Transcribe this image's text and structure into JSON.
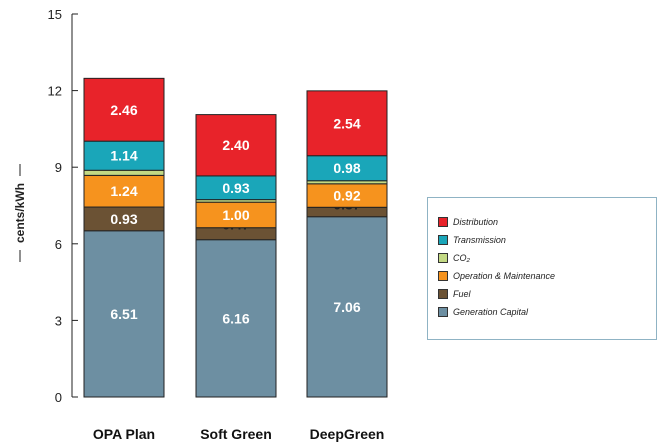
{
  "chart_data": {
    "type": "bar",
    "stacked": true,
    "categories": [
      "OPA Plan",
      "Soft Green",
      "DeepGreen"
    ],
    "ylabel": "cents/kWh",
    "ylim": [
      0,
      15
    ],
    "yticks": [
      0,
      3,
      6,
      9,
      12,
      15
    ],
    "legend_position": "right",
    "series": [
      {
        "name": "Generation Capital",
        "color": "#6d8fa2",
        "label_color": "#ffffff",
        "values": [
          6.51,
          6.16,
          7.06
        ],
        "labels": [
          "6.51",
          "6.16",
          "7.06"
        ]
      },
      {
        "name": "Fuel",
        "color": "#6b5234",
        "label_color": "#ffffff",
        "values": [
          0.93,
          0.47,
          0.37
        ],
        "labels": [
          "0.93",
          "0.47",
          "0.37"
        ]
      },
      {
        "name": "Operation & Maintenance",
        "color": "#f6931e",
        "label_color": "#ffffff",
        "values": [
          1.24,
          1.0,
          0.92
        ],
        "labels": [
          "1.24",
          "1.00",
          "0.92"
        ]
      },
      {
        "name": "CO₂",
        "color": "#c3d984",
        "label_color": "#333333",
        "values": [
          0.2,
          0.1,
          0.12
        ],
        "labels": [
          "",
          "",
          ""
        ]
      },
      {
        "name": "Transmission",
        "color": "#1aa6b9",
        "label_color": "#ffffff",
        "values": [
          1.14,
          0.93,
          0.98
        ],
        "labels": [
          "1.14",
          "0.93",
          "0.98"
        ]
      },
      {
        "name": "Distribution",
        "color": "#e8232a",
        "label_color": "#ffffff",
        "values": [
          2.46,
          2.4,
          2.54
        ],
        "labels": [
          "2.46",
          "2.40",
          "2.54"
        ]
      }
    ]
  }
}
